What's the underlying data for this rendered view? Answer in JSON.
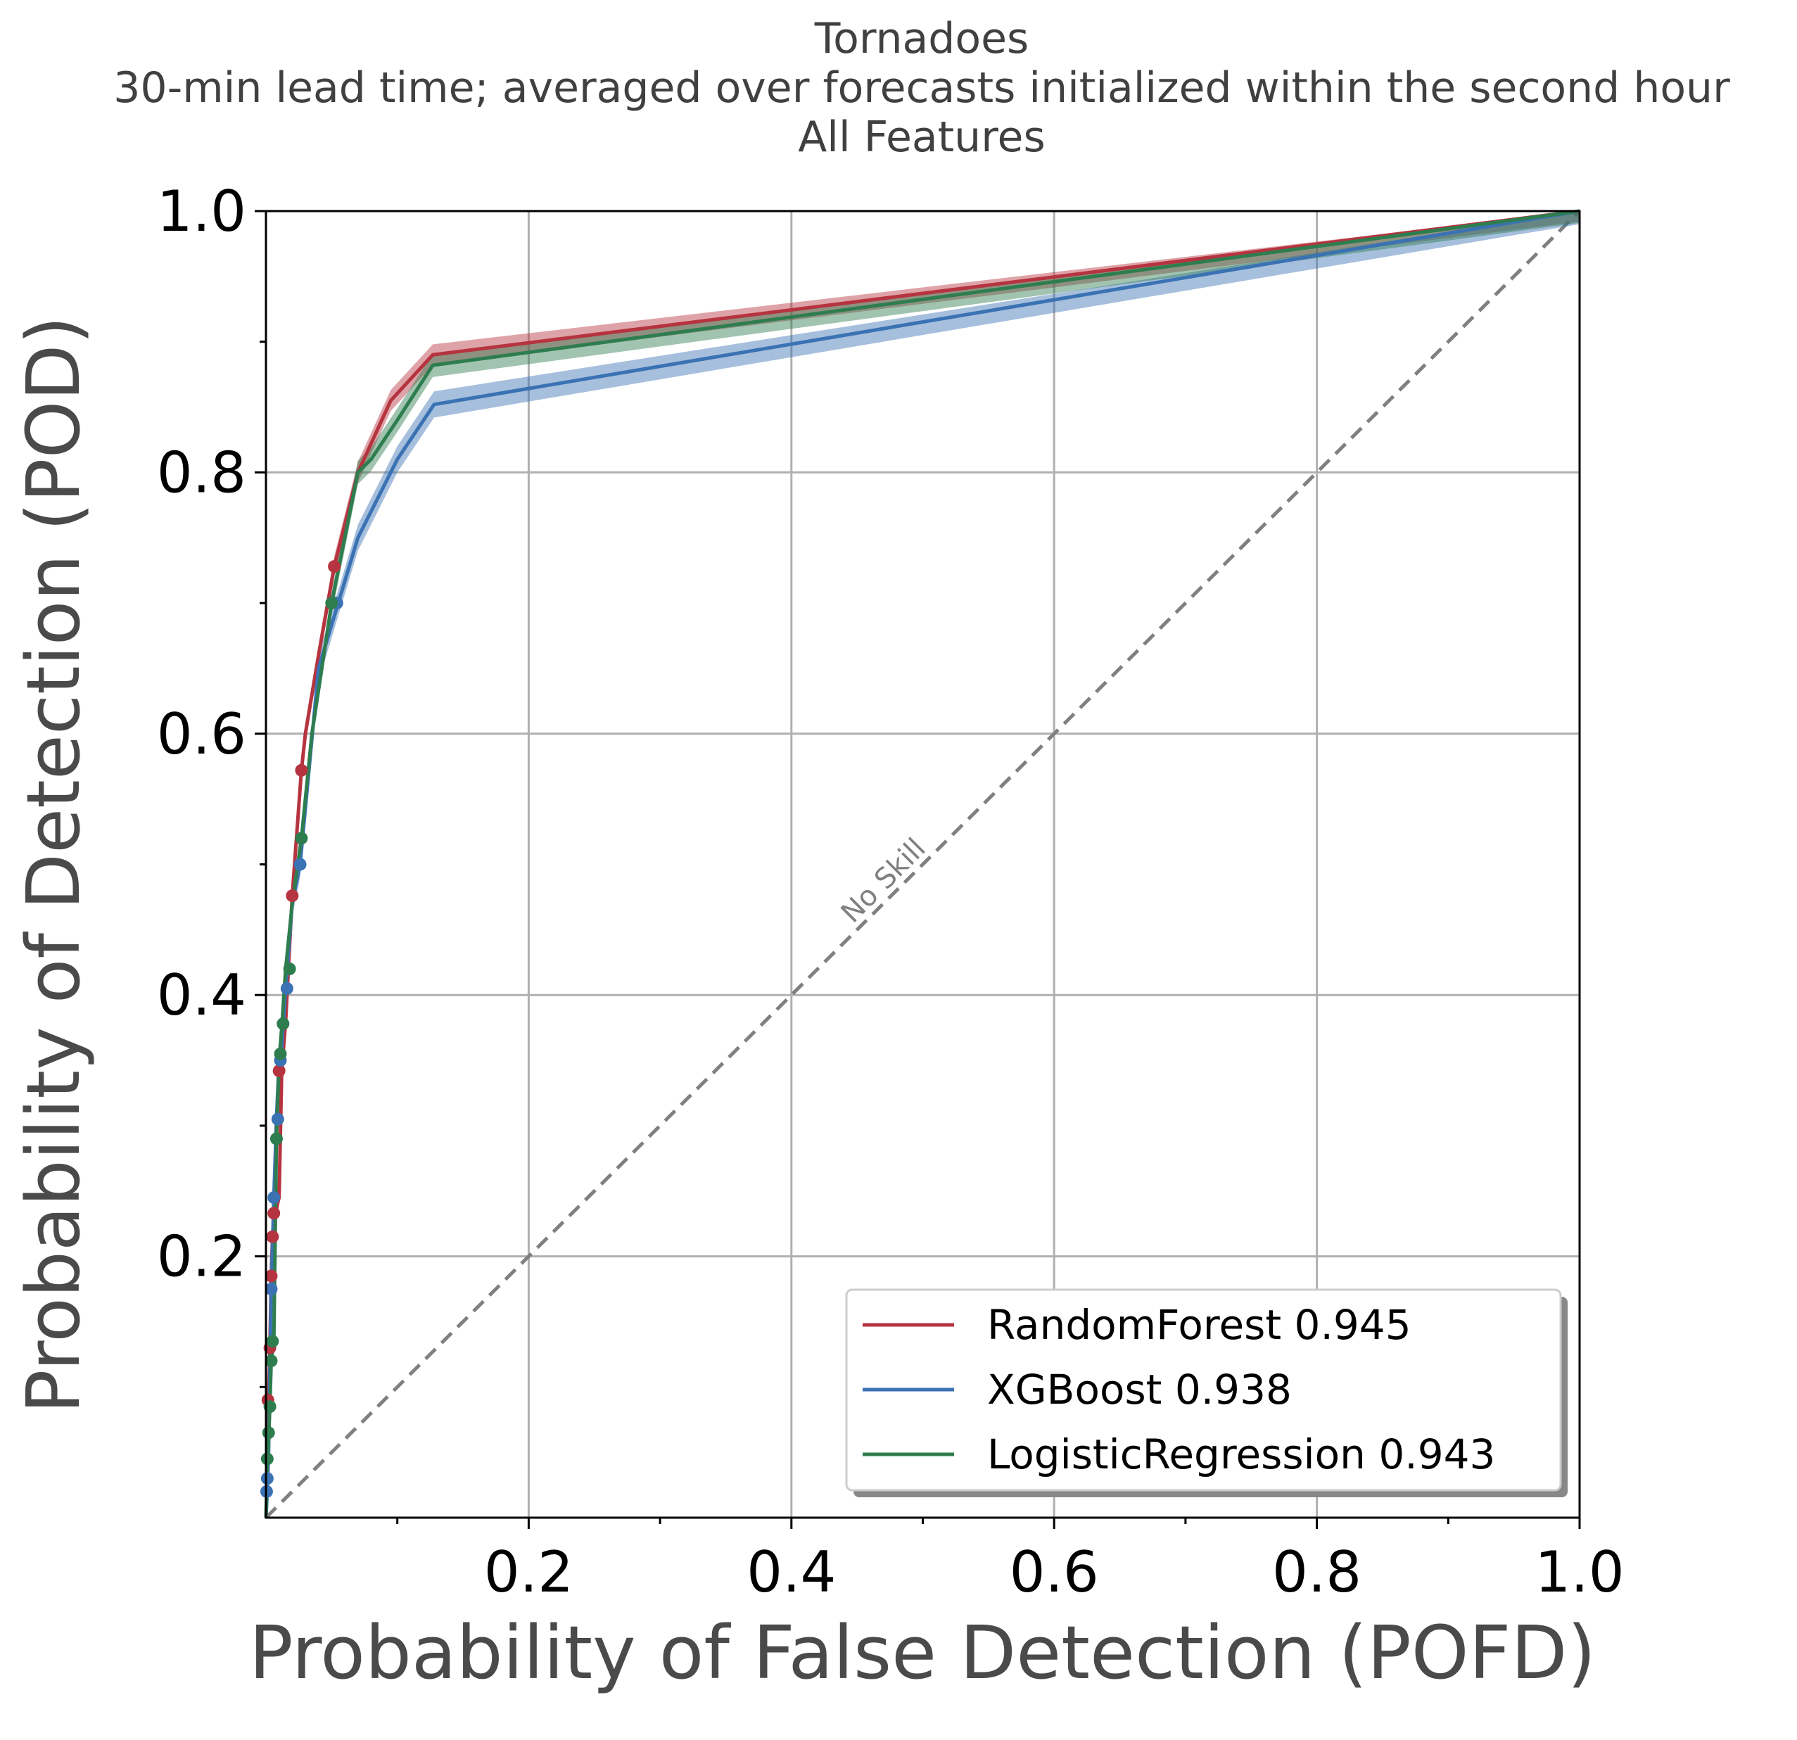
{
  "chart_data": {
    "type": "line",
    "title": "Tornadoes",
    "subtitle": "30-min lead time; averaged over forecasts initialized within the second hour",
    "subtitle2": "All Features",
    "xlabel": "Probability of False Detection (POFD)",
    "ylabel": "Probability of Detection (POD)",
    "xlim": [
      0,
      1
    ],
    "ylim": [
      0,
      1
    ],
    "xticks": [
      "0.2",
      "0.4",
      "0.6",
      "0.8",
      "1.0"
    ],
    "yticks": [
      "0.2",
      "0.4",
      "0.6",
      "0.8",
      "1.0"
    ],
    "grid": true,
    "legend_position": "bottom-right",
    "annotation": "No Skill",
    "colors": {
      "RandomForest": "#b5343f",
      "XGBoost": "#3a72b3",
      "LogisticRegression": "#2e7d4f",
      "no_skill": "#808080"
    },
    "series": [
      {
        "name": "RandomForest 0.945",
        "x": [
          0,
          0.001,
          0.002,
          0.003,
          0.004,
          0.005,
          0.007,
          0.01,
          0.012,
          0.015,
          0.02,
          0.027,
          0.03,
          0.04,
          0.052,
          0.07,
          0.095,
          0.127,
          1.0
        ],
        "y": [
          0,
          0.03,
          0.09,
          0.13,
          0.185,
          0.215,
          0.233,
          0.245,
          0.342,
          0.38,
          0.476,
          0.572,
          0.6,
          0.66,
          0.728,
          0.8,
          0.855,
          0.89,
          1.0
        ],
        "band": 0.008,
        "markers": [
          [
            0.0015,
            0.09
          ],
          [
            0.003,
            0.13
          ],
          [
            0.004,
            0.185
          ],
          [
            0.005,
            0.215
          ],
          [
            0.006,
            0.233
          ],
          [
            0.01,
            0.342
          ],
          [
            0.02,
            0.476
          ],
          [
            0.027,
            0.572
          ],
          [
            0.052,
            0.728
          ]
        ]
      },
      {
        "name": "XGBoost 0.938",
        "x": [
          0,
          0.001,
          0.002,
          0.004,
          0.006,
          0.008,
          0.01,
          0.012,
          0.015,
          0.02,
          0.026,
          0.04,
          0.055,
          0.07,
          0.085,
          0.1,
          0.128,
          1.0
        ],
        "y": [
          0,
          0.02,
          0.05,
          0.175,
          0.245,
          0.305,
          0.35,
          0.36,
          0.405,
          0.47,
          0.5,
          0.65,
          0.7,
          0.75,
          0.78,
          0.81,
          0.852,
          1.0
        ],
        "band": 0.01,
        "markers": [
          [
            0.0005,
            0.02
          ],
          [
            0.001,
            0.03
          ],
          [
            0.004,
            0.175
          ],
          [
            0.006,
            0.245
          ],
          [
            0.009,
            0.305
          ],
          [
            0.011,
            0.35
          ],
          [
            0.016,
            0.405
          ],
          [
            0.026,
            0.5
          ],
          [
            0.054,
            0.7
          ]
        ]
      },
      {
        "name": "LogisticRegression 0.943",
        "x": [
          0,
          0.001,
          0.002,
          0.003,
          0.004,
          0.006,
          0.008,
          0.01,
          0.012,
          0.015,
          0.02,
          0.027,
          0.035,
          0.05,
          0.06,
          0.07,
          0.08,
          0.1,
          0.127,
          1.0
        ],
        "y": [
          0,
          0.04,
          0.06,
          0.085,
          0.12,
          0.135,
          0.29,
          0.35,
          0.375,
          0.42,
          0.47,
          0.52,
          0.6,
          0.7,
          0.75,
          0.8,
          0.81,
          0.84,
          0.882,
          1.0
        ],
        "band": 0.009,
        "markers": [
          [
            0.001,
            0.045
          ],
          [
            0.002,
            0.065
          ],
          [
            0.003,
            0.085
          ],
          [
            0.004,
            0.12
          ],
          [
            0.005,
            0.135
          ],
          [
            0.008,
            0.29
          ],
          [
            0.011,
            0.355
          ],
          [
            0.013,
            0.378
          ],
          [
            0.018,
            0.42
          ],
          [
            0.027,
            0.52
          ],
          [
            0.05,
            0.7
          ]
        ]
      }
    ]
  }
}
